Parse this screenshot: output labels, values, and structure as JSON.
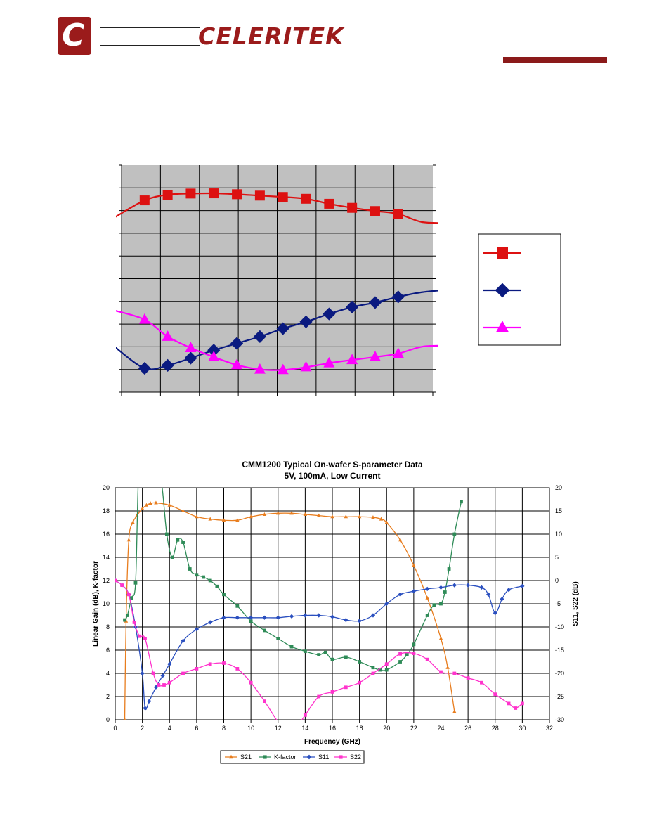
{
  "header": {
    "logo_letter": "C",
    "brand": "CELERITEK",
    "accent_color": "#9b1b1b"
  },
  "chart_data": [
    {
      "type": "line",
      "title": "",
      "xlabel": "",
      "ylabel": "",
      "grid": true,
      "plot_background": "#c0c0c0",
      "legend_position": "right",
      "xlim": [
        0,
        13.5
      ],
      "ylim": [
        0,
        10
      ],
      "series": [
        {
          "color": "#dd1111",
          "marker": "square",
          "x": [
            -0.3,
            1,
            2,
            3,
            4,
            5,
            6,
            7,
            8,
            9,
            10,
            11,
            12,
            13,
            14
          ],
          "y": [
            7.7,
            8.45,
            8.7,
            8.75,
            8.76,
            8.72,
            8.66,
            8.6,
            8.52,
            8.3,
            8.12,
            7.98,
            7.85,
            7.5,
            7.45
          ]
        },
        {
          "color": "#0a1a80",
          "marker": "diamond",
          "x": [
            -0.3,
            1,
            2,
            3,
            4,
            5,
            6,
            7,
            8,
            9,
            10,
            11,
            12,
            13,
            14
          ],
          "y": [
            2.0,
            1.05,
            1.18,
            1.5,
            1.85,
            2.15,
            2.45,
            2.8,
            3.1,
            3.45,
            3.75,
            3.95,
            4.2,
            4.4,
            4.5
          ]
        },
        {
          "color": "#ff00ff",
          "marker": "triangle",
          "x": [
            -0.3,
            1,
            2,
            3,
            4,
            5,
            6,
            7,
            8,
            9,
            10,
            11,
            12,
            13,
            14
          ],
          "y": [
            3.6,
            3.2,
            2.45,
            1.95,
            1.55,
            1.2,
            1.0,
            0.98,
            1.1,
            1.28,
            1.42,
            1.55,
            1.7,
            2.0,
            2.05
          ]
        }
      ]
    },
    {
      "type": "line",
      "title": "CMM1200 Typical On-wafer S-parameter Data",
      "subtitle": "5V, 100mA, Low Current",
      "xlabel": "Frequency (GHz)",
      "ylabel": "Linear Gain (dB), K-factor",
      "y2label": "S11, S22 (dB)",
      "grid": true,
      "legend_position": "bottom",
      "xlim": [
        0,
        32
      ],
      "ylim": [
        0,
        20
      ],
      "y2lim": [
        -30,
        20
      ],
      "x_ticks": [
        "0",
        "2",
        "4",
        "6",
        "8",
        "10",
        "12",
        "14",
        "16",
        "18",
        "20",
        "22",
        "24",
        "26",
        "28",
        "30",
        "32"
      ],
      "y_ticks": [
        "0",
        "2",
        "4",
        "6",
        "8",
        "10",
        "12",
        "14",
        "16",
        "18",
        "20"
      ],
      "y2_ticks": [
        "-30",
        "-25",
        "-20",
        "-15",
        "-10",
        "-5",
        "0",
        "5",
        "10",
        "15",
        "20"
      ],
      "series": [
        {
          "name": "S21",
          "axis": "left",
          "color": "#e87d1e",
          "marker": "triangle",
          "x": [
            0.7,
            0.8,
            1.0,
            1.3,
            1.6,
            2.0,
            2.3,
            2.6,
            3.0,
            4.0,
            5.0,
            6.0,
            7.0,
            8.0,
            9.0,
            10.0,
            11.0,
            12.0,
            13.0,
            14.0,
            15.0,
            16.0,
            17.0,
            18.0,
            19.0,
            19.6,
            20.0,
            21.0,
            22.0,
            23.0,
            24.0,
            24.5,
            25.0
          ],
          "y": [
            0,
            8.5,
            15.5,
            17.0,
            17.6,
            18.2,
            18.5,
            18.65,
            18.7,
            18.5,
            18.0,
            17.5,
            17.3,
            17.2,
            17.2,
            17.5,
            17.7,
            17.8,
            17.8,
            17.7,
            17.6,
            17.5,
            17.5,
            17.5,
            17.45,
            17.3,
            17.0,
            15.5,
            13.3,
            10.5,
            7.0,
            4.5,
            0.7
          ]
        },
        {
          "name": "K-factor",
          "axis": "left",
          "color": "#2e8b57",
          "marker": "square",
          "x": [
            0.7,
            0.9,
            1.2,
            1.5,
            1.7,
            1.9,
            2.5,
            3.0,
            3.4,
            3.8,
            4.2,
            4.6,
            5.0,
            5.5,
            6.0,
            6.5,
            7.0,
            7.5,
            8.0,
            9.0,
            10.0,
            11.0,
            12.0,
            13.0,
            14.0,
            15.0,
            15.5,
            16.0,
            17.0,
            18.0,
            19.0,
            19.5,
            20.0,
            21.0,
            21.5,
            22.0,
            23.0,
            23.5,
            24.0,
            24.3,
            24.6,
            25.0,
            25.5
          ],
          "y": [
            8.6,
            9.0,
            10.5,
            11.8,
            20.5,
            20.5,
            20.5,
            20.5,
            20.5,
            16.0,
            14.0,
            15.5,
            15.3,
            13.0,
            12.5,
            12.3,
            12.0,
            11.5,
            10.8,
            9.8,
            8.5,
            7.7,
            7.0,
            6.3,
            5.9,
            5.6,
            5.8,
            5.2,
            5.4,
            5.0,
            4.5,
            4.3,
            4.3,
            5.0,
            5.6,
            6.5,
            9.0,
            9.9,
            10.0,
            11.0,
            13.0,
            16.0,
            18.8
          ]
        },
        {
          "name": "S11",
          "axis": "right",
          "color": "#2a4fbf",
          "marker": "diamond",
          "x": [
            0,
            0.5,
            1.0,
            1.5,
            2.0,
            2.2,
            2.5,
            3.0,
            3.5,
            4.0,
            5.0,
            6.0,
            7.0,
            8.0,
            9.0,
            10.0,
            11.0,
            12.0,
            13.0,
            14.0,
            15.0,
            16.0,
            17.0,
            18.0,
            19.0,
            20.0,
            21.0,
            22.0,
            23.0,
            24.0,
            25.0,
            26.0,
            27.0,
            27.5,
            28.0,
            28.5,
            29.0,
            30.0
          ],
          "y": [
            0,
            -1,
            -3,
            -10,
            -20,
            -27.5,
            -26,
            -23,
            -20.5,
            -18,
            -13,
            -10.5,
            -9,
            -8,
            -8,
            -8,
            -8,
            -8,
            -7.7,
            -7.5,
            -7.5,
            -7.8,
            -8.5,
            -8.7,
            -7.5,
            -5,
            -3,
            -2.3,
            -1.8,
            -1.5,
            -1,
            -1,
            -1.5,
            -3,
            -7,
            -4,
            -2,
            -1.2
          ]
        },
        {
          "name": "S22",
          "axis": "right",
          "color": "#ff33cc",
          "marker": "square",
          "x": [
            0,
            0.5,
            1.0,
            1.4,
            1.8,
            2.2,
            2.8,
            3.2,
            3.6,
            4.0,
            5.0,
            6.0,
            7.0,
            8.0,
            9.0,
            10.0,
            11.0,
            12.0,
            12.5,
            13.0,
            13.5,
            14.0,
            15.0,
            16.0,
            17.0,
            18.0,
            19.0,
            20.0,
            21.0,
            22.0,
            23.0,
            24.0,
            25.0,
            26.0,
            27.0,
            28.0,
            29.0,
            29.5,
            30.0
          ],
          "y": [
            0,
            -1,
            -3,
            -9,
            -12,
            -12.5,
            -20,
            -22.5,
            -22.5,
            -22,
            -20,
            -19,
            -18,
            -17.8,
            -19,
            -22,
            -26,
            -30.5,
            -32,
            -32,
            -31,
            -29,
            -25,
            -24,
            -23,
            -22,
            -20,
            -18,
            -15.8,
            -15.7,
            -17,
            -19.7,
            -20,
            -21,
            -22,
            -24.5,
            -26.5,
            -27.5,
            -26.5
          ]
        }
      ]
    }
  ]
}
